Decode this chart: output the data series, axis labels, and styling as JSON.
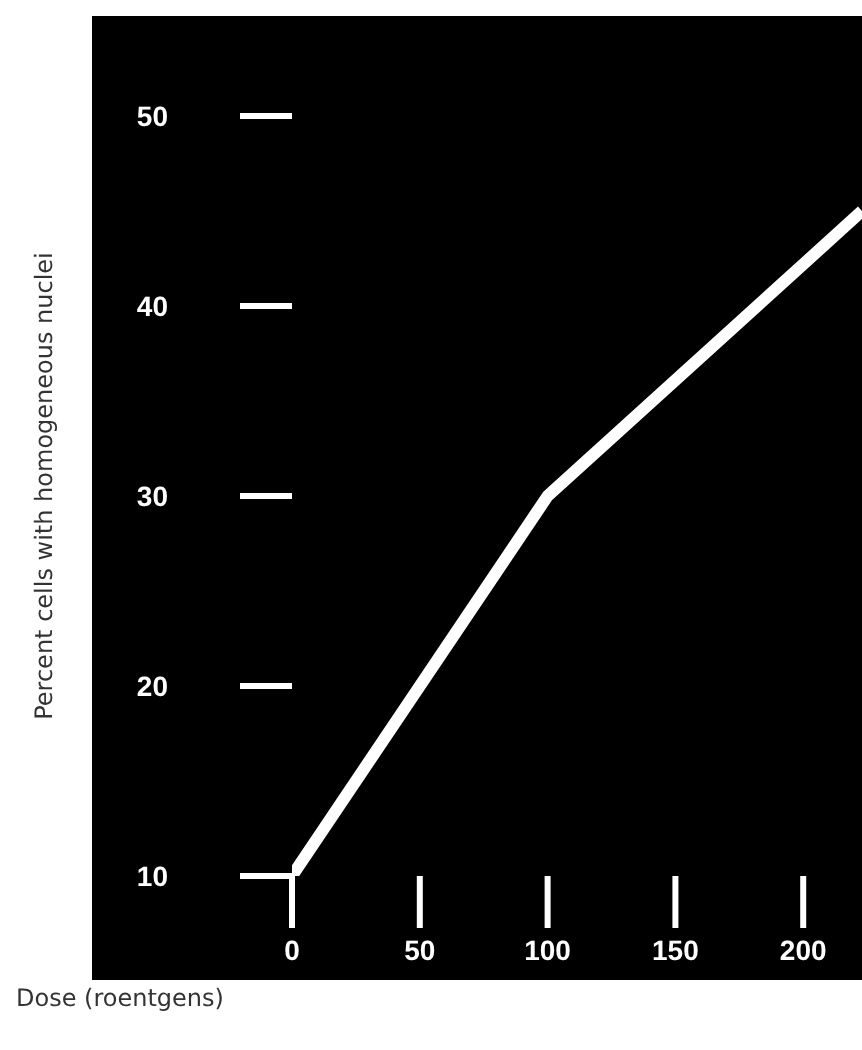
{
  "chart_data": {
    "type": "line",
    "xlabel": "Dose (roentgens)",
    "ylabel": "Percent cells with homogeneous nuclei",
    "x": [
      0,
      100,
      223
    ],
    "series": [
      {
        "color": "#ffffff",
        "values": [
          10,
          30,
          45
        ]
      }
    ],
    "xlim": [
      0,
      223
    ],
    "ylim": [
      10,
      50
    ],
    "xticks": [
      0,
      50,
      100,
      150,
      200
    ],
    "yticks": [
      10,
      20,
      30,
      40,
      50
    ],
    "grid": false,
    "legend": false,
    "marker": "none",
    "line_style": "solid"
  }
}
